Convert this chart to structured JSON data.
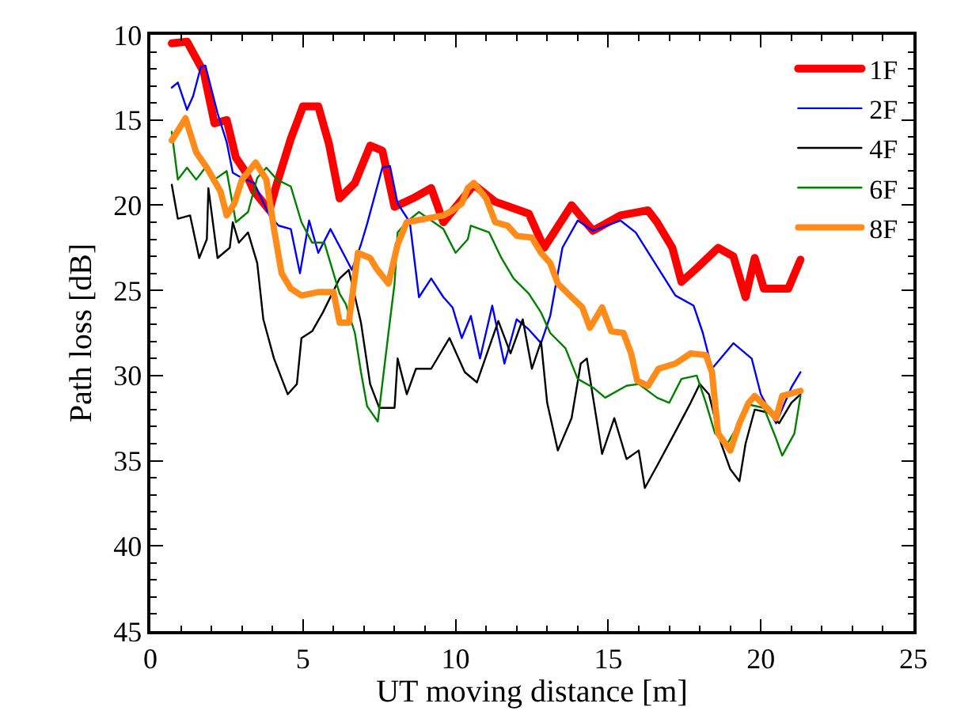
{
  "chart_data": {
    "type": "line",
    "xlabel": "UT moving distance [m]",
    "ylabel": "Path loss [dB]",
    "xlim": [
      0,
      25
    ],
    "xticks": [
      0,
      5,
      10,
      15,
      20,
      25
    ],
    "ylim": [
      45,
      10
    ],
    "yticks": [
      10,
      15,
      20,
      25,
      30,
      35,
      40,
      45
    ],
    "grid": false,
    "legend": "top right",
    "line_style": "solid",
    "series": [
      {
        "name": "1F",
        "color": "#ff0000",
        "x": [
          0.7,
          1.2,
          1.75,
          2.1,
          2.5,
          2.8,
          3.1,
          3.4,
          3.9,
          4.15,
          4.6,
          5.0,
          5.5,
          5.85,
          6.2,
          6.7,
          7.2,
          7.6,
          8.0,
          8.6,
          9.2,
          9.6,
          10.6,
          11.3,
          12.4,
          12.9,
          13.8,
          14.5,
          15.4,
          16.3,
          16.6,
          17.1,
          17.4,
          17.9,
          18.6,
          19.1,
          19.5,
          19.8,
          20.1,
          20.9,
          21.3
        ],
        "values": [
          10.5,
          10.4,
          12.2,
          15.2,
          15.0,
          17.2,
          18.0,
          19.2,
          20.3,
          18.7,
          16.1,
          14.2,
          14.2,
          16.4,
          19.6,
          18.7,
          16.5,
          16.8,
          20.1,
          19.6,
          19.0,
          21.0,
          18.8,
          19.8,
          20.5,
          22.5,
          20.0,
          21.5,
          20.6,
          20.3,
          21.0,
          22.5,
          24.5,
          23.7,
          22.5,
          23.0,
          25.4,
          23.1,
          24.9,
          24.9,
          23.2
        ]
      },
      {
        "name": "2F",
        "color": "#0000ff",
        "x": [
          0.7,
          0.9,
          1.2,
          1.4,
          1.65,
          1.8,
          2.2,
          2.5,
          2.7,
          3.0,
          3.4,
          3.9,
          4.2,
          4.6,
          4.9,
          5.2,
          5.5,
          5.9,
          6.4,
          6.6,
          6.9,
          7.1,
          7.6,
          7.85,
          8.1,
          8.5,
          8.8,
          9.2,
          9.6,
          9.9,
          10.2,
          10.5,
          10.8,
          11.2,
          11.6,
          12.0,
          12.4,
          12.8,
          13.1,
          13.5,
          14.0,
          14.5,
          15.4,
          15.9,
          16.6,
          17.2,
          17.8,
          18.1,
          18.4,
          19.1,
          19.7,
          20.0,
          20.5,
          21.0,
          21.3
        ],
        "values": [
          13.1,
          12.8,
          14.4,
          13.6,
          11.9,
          11.8,
          14.6,
          16.3,
          18.1,
          18.4,
          18.7,
          20.6,
          21.2,
          21.4,
          24.0,
          20.9,
          22.8,
          21.4,
          23.1,
          23.8,
          22.3,
          21.1,
          17.8,
          17.7,
          19.9,
          21.0,
          25.4,
          24.3,
          25.4,
          26.0,
          27.8,
          26.5,
          29.0,
          25.9,
          29.3,
          26.7,
          27.3,
          28.1,
          26.5,
          22.5,
          20.9,
          21.5,
          20.9,
          21.6,
          23.6,
          25.3,
          25.9,
          27.5,
          29.6,
          28.1,
          29.0,
          31.1,
          32.8,
          30.7,
          29.8
        ]
      },
      {
        "name": "4F",
        "color": "#000000",
        "x": [
          0.7,
          0.9,
          1.3,
          1.6,
          1.85,
          1.9,
          2.2,
          2.6,
          2.7,
          2.9,
          3.2,
          3.5,
          3.7,
          4.05,
          4.5,
          4.8,
          4.95,
          5.3,
          5.65,
          6.2,
          6.5,
          6.9,
          7.2,
          7.5,
          8.0,
          8.1,
          8.4,
          8.7,
          9.2,
          9.8,
          10.3,
          10.7,
          11.4,
          11.8,
          12.2,
          12.5,
          12.8,
          13.0,
          13.35,
          13.8,
          14.1,
          14.3,
          14.8,
          15.2,
          15.6,
          16.0,
          16.2,
          16.6,
          17.2,
          17.7,
          18.0,
          18.3,
          18.7,
          19.0,
          19.3,
          19.5,
          19.8,
          20.3,
          20.6,
          21.0,
          21.3
        ],
        "values": [
          18.8,
          20.8,
          20.6,
          23.1,
          22.0,
          19.0,
          23.1,
          22.5,
          21.0,
          22.2,
          21.6,
          23.4,
          26.7,
          29.0,
          31.1,
          30.5,
          27.8,
          27.4,
          26.3,
          24.3,
          23.8,
          26.9,
          30.5,
          31.9,
          31.9,
          29.0,
          31.1,
          29.6,
          29.6,
          27.8,
          29.8,
          30.4,
          26.8,
          28.7,
          26.7,
          29.6,
          28.0,
          31.6,
          34.4,
          32.5,
          29.3,
          29.0,
          34.6,
          32.5,
          34.9,
          34.4,
          36.6,
          35.3,
          33.3,
          31.6,
          30.5,
          31.1,
          34.0,
          35.5,
          36.2,
          34.0,
          32.0,
          32.2,
          32.8,
          31.6,
          31.1
        ]
      },
      {
        "name": "6F",
        "color": "#008000",
        "x": [
          0.7,
          0.9,
          1.2,
          1.5,
          1.8,
          2.1,
          2.5,
          2.8,
          3.2,
          3.5,
          3.8,
          4.15,
          4.6,
          4.95,
          5.3,
          5.7,
          6.2,
          6.4,
          6.7,
          6.9,
          7.1,
          7.45,
          7.8,
          8.0,
          8.1,
          8.45,
          8.8,
          9.6,
          10.0,
          10.4,
          10.5,
          11.1,
          11.5,
          11.9,
          12.4,
          12.8,
          13.1,
          13.6,
          14.0,
          14.5,
          14.9,
          15.6,
          16.0,
          16.6,
          17.0,
          17.4,
          17.9,
          18.2,
          18.5,
          18.9,
          19.3,
          19.6,
          20.1,
          20.5,
          20.7,
          21.1,
          21.3
        ],
        "values": [
          15.7,
          18.5,
          17.8,
          18.5,
          17.8,
          18.5,
          18.0,
          21.0,
          20.4,
          18.4,
          17.8,
          18.5,
          18.9,
          21.0,
          22.2,
          22.2,
          25.2,
          25.8,
          27.5,
          29.8,
          31.8,
          32.7,
          27.5,
          24.6,
          21.6,
          20.9,
          20.4,
          21.4,
          22.8,
          22.0,
          21.2,
          21.6,
          23.1,
          24.3,
          25.2,
          26.3,
          27.5,
          28.4,
          30.2,
          30.7,
          31.3,
          30.6,
          30.5,
          31.3,
          31.6,
          30.2,
          30.0,
          31.6,
          33.4,
          34.0,
          32.8,
          31.7,
          31.9,
          33.7,
          34.7,
          33.4,
          31.2
        ]
      },
      {
        "name": "8F",
        "color": "#ff8c1a",
        "x": [
          0.7,
          1.15,
          1.5,
          1.85,
          2.3,
          2.5,
          2.75,
          3.0,
          3.45,
          3.8,
          4.05,
          4.3,
          4.6,
          4.95,
          5.5,
          6.0,
          6.2,
          6.5,
          6.8,
          7.2,
          7.4,
          7.8,
          8.1,
          8.4,
          9.0,
          9.6,
          9.9,
          10.2,
          10.4,
          10.6,
          11.0,
          11.3,
          11.7,
          12.0,
          12.5,
          12.8,
          13.1,
          13.35,
          13.8,
          14.15,
          14.4,
          14.8,
          15.1,
          15.5,
          15.75,
          15.95,
          16.3,
          16.65,
          17.2,
          17.7,
          18.2,
          18.4,
          18.6,
          19.0,
          19.3,
          19.6,
          19.8,
          20.2,
          20.5,
          20.7,
          21.3
        ],
        "values": [
          16.2,
          14.9,
          16.9,
          17.8,
          19.2,
          20.6,
          19.9,
          18.5,
          17.5,
          18.5,
          21.4,
          24.0,
          24.9,
          25.3,
          25.1,
          25.1,
          26.9,
          26.9,
          22.8,
          23.1,
          23.7,
          24.6,
          22.3,
          21.0,
          20.8,
          20.6,
          20.3,
          19.9,
          19.0,
          18.7,
          19.6,
          21.0,
          21.2,
          21.8,
          21.9,
          22.8,
          23.4,
          24.6,
          25.4,
          26.0,
          27.2,
          26.0,
          27.4,
          27.5,
          28.7,
          30.3,
          30.6,
          29.6,
          29.3,
          28.7,
          28.8,
          29.8,
          33.4,
          34.4,
          32.8,
          31.6,
          31.2,
          31.9,
          32.5,
          31.2,
          30.9
        ]
      }
    ]
  }
}
